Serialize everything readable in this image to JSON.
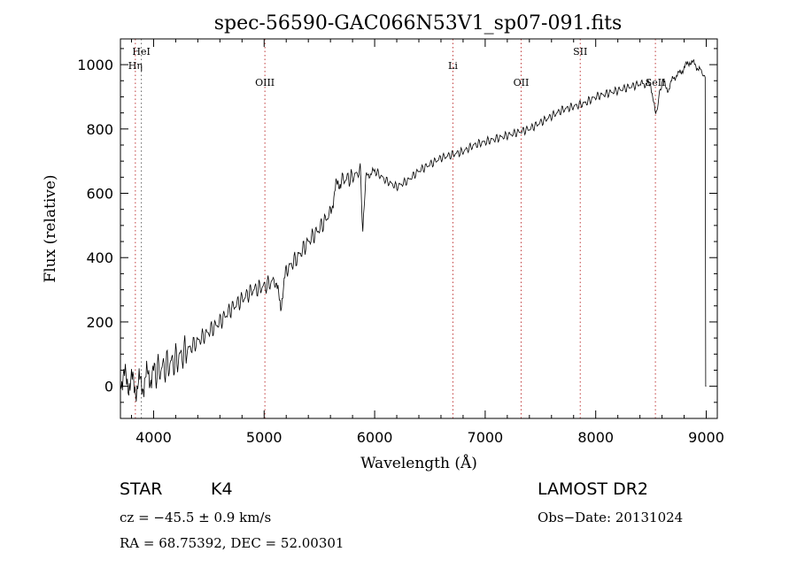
{
  "figure": {
    "title": "spec-56590-GAC066N53V1_sp07-091.fits"
  },
  "chart_data": {
    "type": "line",
    "title": "spec-56590-GAC066N53V1_sp07-091.fits",
    "xlabel": "Wavelength (Å)",
    "ylabel": "Flux (relative)",
    "xlim": [
      3700,
      9100
    ],
    "ylim": [
      -100,
      1080
    ],
    "x_ticks": [
      4000,
      5000,
      6000,
      7000,
      8000,
      9000
    ],
    "y_ticks": [
      0,
      200,
      400,
      600,
      800,
      1000
    ],
    "grid": false,
    "series": [
      {
        "x": [
          3700,
          3750,
          3800,
          3850,
          3900,
          3950,
          4000,
          4100,
          4200,
          4300,
          4400,
          4500,
          4600,
          4700,
          4800,
          4900,
          5000,
          5100,
          5150,
          5200,
          5300,
          5400,
          5500,
          5600,
          5650,
          5700,
          5800,
          5870,
          5893,
          5920,
          6000,
          6100,
          6200,
          6300,
          6400,
          6500,
          6600,
          6700,
          6800,
          6900,
          7000,
          7100,
          7200,
          7300,
          7400,
          7500,
          7600,
          7700,
          7800,
          7900,
          8000,
          8100,
          8200,
          8300,
          8400,
          8498,
          8542,
          8600,
          8662,
          8700,
          8750,
          8800,
          8850,
          8900,
          8950,
          8990,
          8995,
          9000
        ],
        "y": [
          30,
          20,
          10,
          0,
          10,
          30,
          40,
          60,
          80,
          110,
          140,
          170,
          200,
          240,
          270,
          300,
          310,
          330,
          250,
          360,
          400,
          450,
          490,
          540,
          620,
          640,
          650,
          670,
          490,
          650,
          670,
          640,
          620,
          640,
          670,
          690,
          710,
          720,
          730,
          750,
          760,
          770,
          780,
          790,
          800,
          820,
          840,
          860,
          870,
          880,
          900,
          910,
          920,
          930,
          940,
          940,
          840,
          950,
          920,
          960,
          970,
          990,
          1010,
          1000,
          980,
          960,
          0,
          0
        ]
      }
    ],
    "line_markers": [
      {
        "label": "HeI",
        "x": 3889,
        "row": 0,
        "color": "#666666"
      },
      {
        "label": "Hη",
        "x": 3835,
        "row": 1,
        "color": "#c03a3a"
      },
      {
        "label": "OIII",
        "x": 5007,
        "row": 2,
        "color": "#c03a3a"
      },
      {
        "label": "Li",
        "x": 6708,
        "row": 1,
        "color": "#c03a3a"
      },
      {
        "label": "OII",
        "x": 7325,
        "row": 2,
        "color": "#c03a3a"
      },
      {
        "label": "SII",
        "x": 7860,
        "row": 0,
        "color": "#c03a3a"
      },
      {
        "label": "SeII",
        "x": 8540,
        "row": 2,
        "color": "#c03a3a"
      }
    ]
  },
  "info": {
    "object_class": "STAR",
    "subclass": "K4",
    "survey": "LAMOST DR2",
    "redshift": "cz = −45.5 ± 0.9 km/s",
    "obs_date": "Obs−Date: 20131024",
    "coords": "RA =  68.75392, DEC =  52.00301"
  }
}
